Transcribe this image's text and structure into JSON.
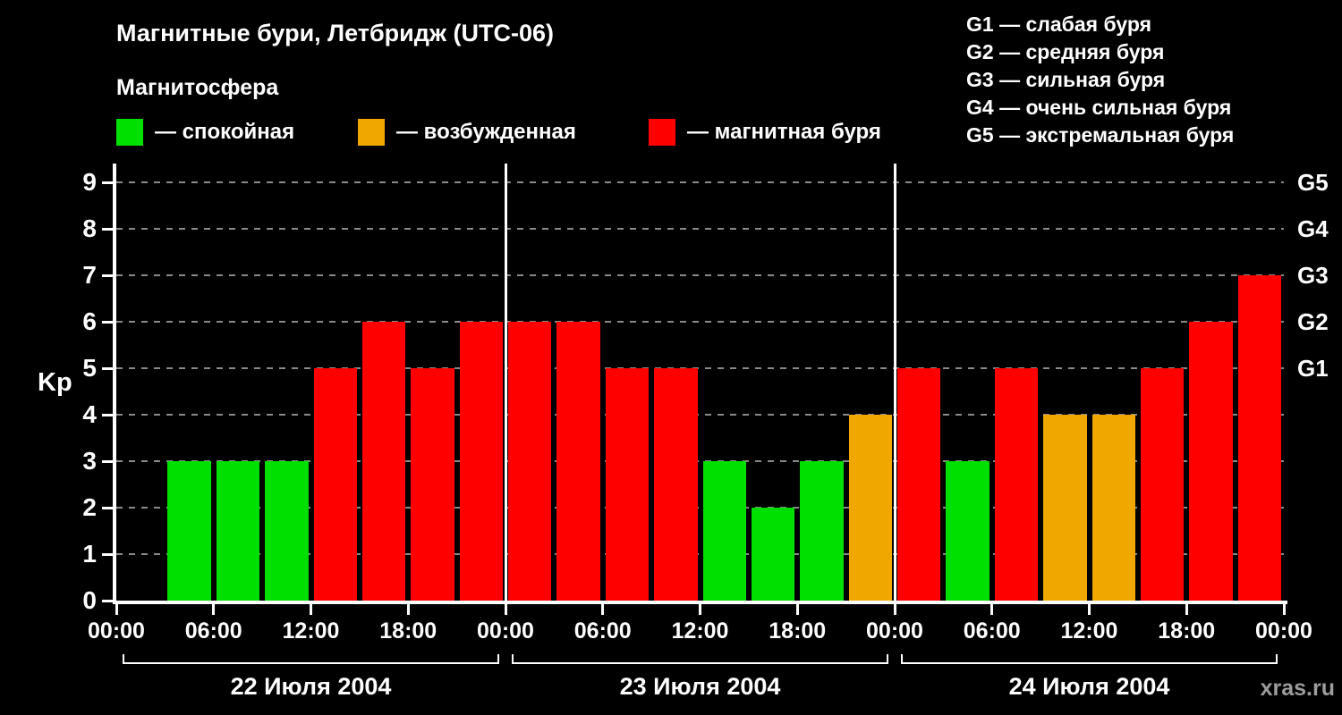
{
  "page": {
    "title": "Магнитные бури, Летбридж (UTC-06)",
    "subtitle": "Магнитосфера",
    "watermark": "xras.ru"
  },
  "legend": {
    "items": [
      {
        "key": "quiet",
        "label": "— спокойная"
      },
      {
        "key": "excited",
        "label": "— возбужденная"
      },
      {
        "key": "storm",
        "label": "— магнитная буря"
      }
    ]
  },
  "storm_scale_legend": [
    "G1 — слабая буря",
    "G2 — средняя буря",
    "G3 — сильная буря",
    "G4 — очень сильная буря",
    "G5 — экстремальная буря"
  ],
  "colors": {
    "quiet": "#00e000",
    "excited": "#f0a800",
    "storm": "#ff0000",
    "grid": "#8a8a8a",
    "axis": "#ffffff",
    "watermark": "#9c9c9c"
  },
  "chart_data": {
    "type": "bar",
    "title": "Магнитные бури, Летбридж (UTC-06)",
    "ylabel": "Kp",
    "ylim": [
      0,
      9
    ],
    "yticks": [
      0,
      1,
      2,
      3,
      4,
      5,
      6,
      7,
      8,
      9
    ],
    "grid": true,
    "bar_interval_hours": 3,
    "x_ticks_per_day": [
      "00:00",
      "06:00",
      "12:00",
      "18:00"
    ],
    "x_axis_end_label": "00:00",
    "right_axis": [
      {
        "label": "G1",
        "value": 5
      },
      {
        "label": "G2",
        "value": 6
      },
      {
        "label": "G3",
        "value": 7
      },
      {
        "label": "G4",
        "value": 8
      },
      {
        "label": "G5",
        "value": 9
      }
    ],
    "color_rules": {
      "quiet_max": 3,
      "excited_max": 4
    },
    "days": [
      {
        "date": "22 Июля 2004",
        "kp_values": [
          null,
          3,
          3,
          3,
          5,
          6,
          5,
          6
        ]
      },
      {
        "date": "23 Июля 2004",
        "kp_values": [
          6,
          6,
          5,
          5,
          3,
          2,
          3,
          4
        ]
      },
      {
        "date": "24 Июля 2004",
        "kp_values": [
          5,
          3,
          5,
          4,
          4,
          5,
          6,
          7
        ]
      }
    ]
  }
}
